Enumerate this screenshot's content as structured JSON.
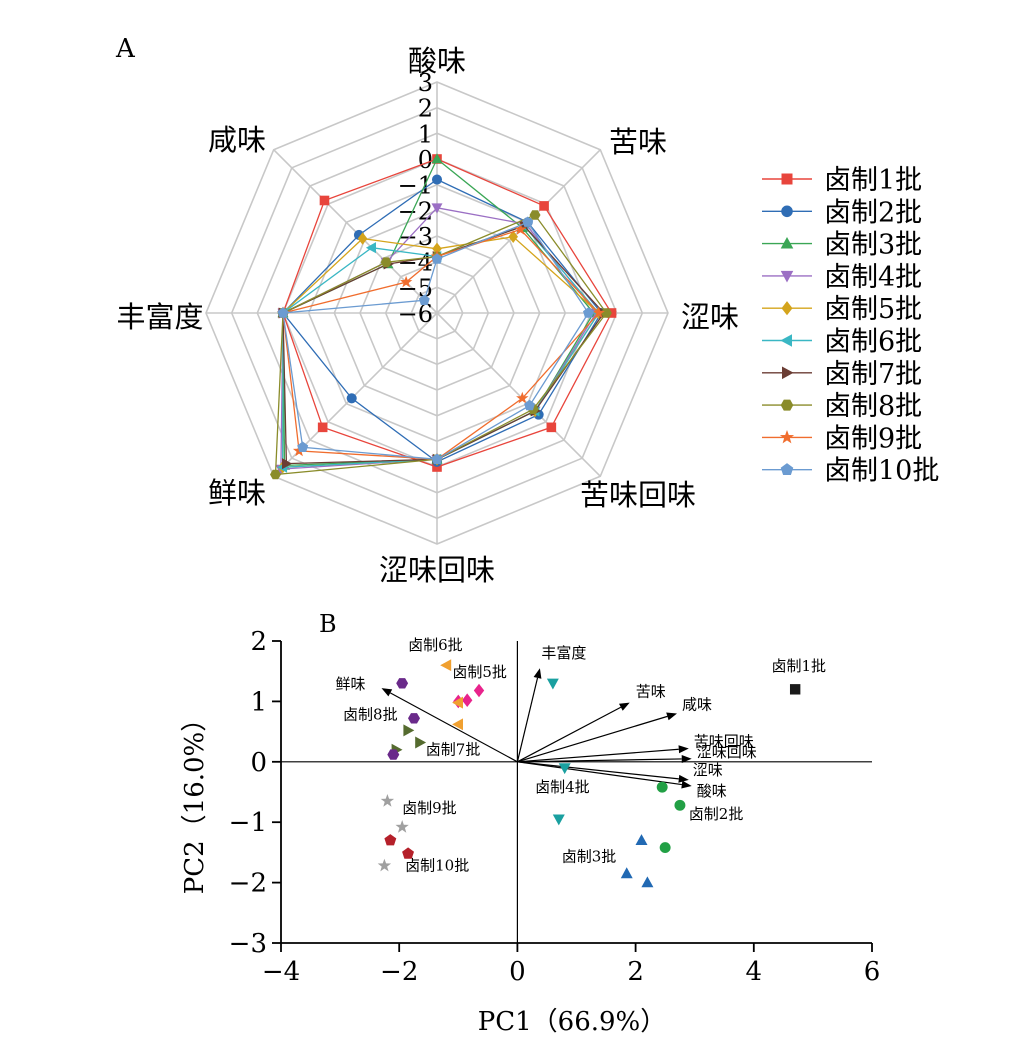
{
  "panels": {
    "a": "A",
    "b": "B"
  },
  "chart_data": [
    {
      "type": "radar",
      "axes": [
        "酸味",
        "苦味",
        "涩味",
        "苦味回味",
        "涩味回味",
        "鲜味",
        "丰富度",
        "咸味"
      ],
      "rlim": [
        -6,
        3
      ],
      "tick_labels": [
        "3",
        "2",
        "1",
        "0",
        "−1",
        "−2",
        "−3",
        "−4",
        "−5",
        "−6"
      ],
      "grid": true,
      "legend_position": "right",
      "series": [
        {
          "name": "卤制1批",
          "color": "#e8453c",
          "marker": "square",
          "values": [
            0.0,
            -0.1,
            0.8,
            0.3,
            0.0,
            0.3,
            0.0,
            0.2
          ]
        },
        {
          "name": "卤制2批",
          "color": "#2f6db5",
          "marker": "circle",
          "values": [
            -0.8,
            -1.0,
            0.4,
            -0.4,
            -0.2,
            -1.3,
            0.0,
            -1.7
          ]
        },
        {
          "name": "卤制3批",
          "color": "#3aa655",
          "marker": "triangle-up",
          "values": [
            0.0,
            -1.3,
            0.1,
            -0.6,
            -0.3,
            2.4,
            0.0,
            -3.3
          ]
        },
        {
          "name": "卤制4批",
          "color": "#9b6fc4",
          "marker": "triangle-down",
          "values": [
            -1.9,
            -1.1,
            0.2,
            -0.6,
            -0.3,
            2.6,
            0.0,
            -3.2
          ]
        },
        {
          "name": "卤制5批",
          "color": "#d4a41c",
          "marker": "diamond",
          "values": [
            -3.5,
            -1.8,
            0.3,
            -0.6,
            -0.3,
            2.5,
            0.0,
            -1.9
          ]
        },
        {
          "name": "卤制6批",
          "color": "#3ab7c4",
          "marker": "triangle-left",
          "values": [
            -3.8,
            -1.2,
            0.3,
            -0.6,
            -0.3,
            2.5,
            0.0,
            -2.4
          ]
        },
        {
          "name": "卤制7批",
          "color": "#6b3d34",
          "marker": "triangle-right",
          "values": [
            -3.8,
            -1.2,
            0.5,
            -0.6,
            -0.3,
            2.3,
            0.0,
            -3.3
          ]
        },
        {
          "name": "卤制8批",
          "color": "#8a8c2a",
          "marker": "hexagon",
          "values": [
            -3.8,
            -0.6,
            0.6,
            -0.7,
            -0.3,
            2.9,
            0.0,
            -3.2
          ]
        },
        {
          "name": "卤制9批",
          "color": "#f06d2e",
          "marker": "star",
          "values": [
            -3.8,
            -1.4,
            0.3,
            -1.3,
            -0.3,
            1.6,
            0.0,
            -4.3
          ]
        },
        {
          "name": "卤制10批",
          "color": "#6b9bd1",
          "marker": "pentagon",
          "values": [
            -3.9,
            -1.0,
            -0.1,
            -0.9,
            -0.3,
            1.4,
            0.0,
            -5.3
          ]
        }
      ]
    },
    {
      "type": "scatter",
      "xlabel": "PC1（66.9%）",
      "ylabel": "PC2（16.0%）",
      "xlim": [
        -4,
        6
      ],
      "ylim": [
        -3,
        2
      ],
      "xticks": [
        -4,
        -2,
        0,
        2,
        4,
        6
      ],
      "yticks": [
        -3,
        -2,
        -1,
        0,
        1,
        2
      ],
      "xtick_labels": [
        "−4",
        "−2",
        "0",
        "2",
        "4",
        "6"
      ],
      "ytick_labels": [
        "−3",
        "−2",
        "−1",
        "0",
        "1",
        "2"
      ],
      "loadings": [
        {
          "label": "鲜味",
          "x": -2.3,
          "y": 1.22
        },
        {
          "label": "丰富度",
          "x": 0.38,
          "y": 1.55
        },
        {
          "label": "苦味",
          "x": 1.9,
          "y": 0.98
        },
        {
          "label": "咸味",
          "x": 2.7,
          "y": 0.8
        },
        {
          "label": "苦味回味",
          "x": 2.9,
          "y": 0.22
        },
        {
          "label": "涩味回味",
          "x": 2.95,
          "y": 0.05
        },
        {
          "label": "涩味",
          "x": 2.9,
          "y": -0.3
        },
        {
          "label": "酸味",
          "x": 2.95,
          "y": -0.4
        }
      ],
      "groups": [
        {
          "name": "卤制1批",
          "color": "#1a1a1a",
          "marker": "square",
          "points": [
            [
              4.7,
              1.2
            ]
          ]
        },
        {
          "name": "卤制2批",
          "color": "#22a045",
          "marker": "circle",
          "points": [
            [
              2.45,
              -0.42
            ],
            [
              2.75,
              -0.72
            ],
            [
              2.5,
              -1.42
            ]
          ]
        },
        {
          "name": "卤制3批",
          "color": "#2169b3",
          "marker": "triangle-up",
          "points": [
            [
              2.1,
              -1.3
            ],
            [
              1.85,
              -1.85
            ],
            [
              2.2,
              -2.0
            ]
          ]
        },
        {
          "name": "卤制4批",
          "color": "#1aa0a0",
          "marker": "triangle-down",
          "points": [
            [
              0.6,
              1.3
            ],
            [
              0.8,
              -0.1
            ],
            [
              0.7,
              -0.95
            ]
          ]
        },
        {
          "name": "卤制5批",
          "color": "#e8238c",
          "marker": "diamond",
          "points": [
            [
              -1.0,
              1.0
            ],
            [
              -0.85,
              1.02
            ],
            [
              -0.65,
              1.18
            ]
          ]
        },
        {
          "name": "卤制6批",
          "color": "#f0a030",
          "marker": "triangle-left",
          "points": [
            [
              -1.2,
              1.6
            ],
            [
              -1.0,
              0.98
            ],
            [
              -1.0,
              0.62
            ]
          ]
        },
        {
          "name": "卤制7批",
          "color": "#556b2f",
          "marker": "triangle-right",
          "points": [
            [
              -1.85,
              0.52
            ],
            [
              -1.65,
              0.32
            ],
            [
              -2.05,
              0.2
            ]
          ]
        },
        {
          "name": "卤制8批",
          "color": "#6a2a8a",
          "marker": "hexagon",
          "points": [
            [
              -1.95,
              1.3
            ],
            [
              -1.75,
              0.72
            ],
            [
              -2.1,
              0.12
            ]
          ]
        },
        {
          "name": "卤制9批",
          "color": "#a0a0a0",
          "marker": "star",
          "points": [
            [
              -2.2,
              -0.65
            ],
            [
              -1.95,
              -1.08
            ],
            [
              -2.25,
              -1.72
            ]
          ]
        },
        {
          "name": "卤制10批",
          "color": "#b5202a",
          "marker": "pentagon",
          "points": [
            [
              -2.15,
              -1.3
            ],
            [
              -1.85,
              -1.52
            ]
          ]
        }
      ],
      "point_labels": [
        {
          "text": "卤制1批",
          "x": 4.3,
          "y": 1.5
        },
        {
          "text": "卤制2批",
          "x": 2.9,
          "y": -0.95
        },
        {
          "text": "卤制3批",
          "x": 0.75,
          "y": -1.65
        },
        {
          "text": "卤制4批",
          "x": 0.3,
          "y": -0.5
        },
        {
          "text": "卤制5批",
          "x": -1.1,
          "y": 1.4
        },
        {
          "text": "卤制6批",
          "x": -1.85,
          "y": 1.85
        },
        {
          "text": "卤制7批",
          "x": -1.55,
          "y": 0.12
        },
        {
          "text": "卤制8批",
          "x": -2.95,
          "y": 0.7
        },
        {
          "text": "卤制9批",
          "x": -1.95,
          "y": -0.85
        },
        {
          "text": "卤制10批",
          "x": -1.9,
          "y": -1.8
        }
      ]
    }
  ]
}
